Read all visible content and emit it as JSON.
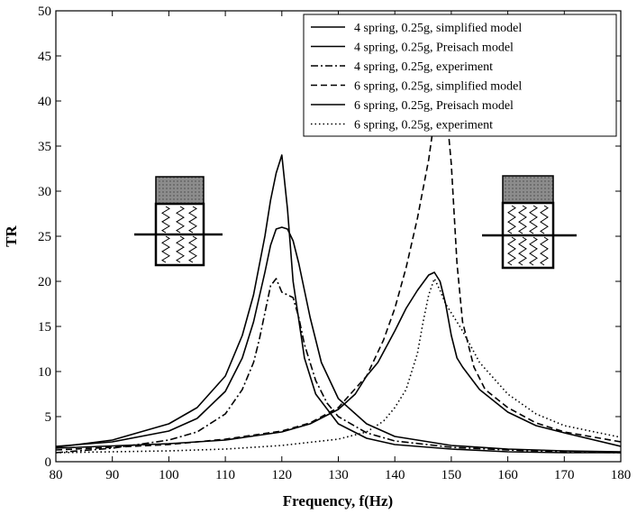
{
  "chart_data": {
    "type": "line",
    "xlabel": "Frequency, f(Hz)",
    "ylabel": "TR",
    "xlim": [
      80,
      180
    ],
    "ylim": [
      0,
      50
    ],
    "xticks": [
      80,
      90,
      100,
      110,
      120,
      130,
      140,
      150,
      160,
      170,
      180
    ],
    "yticks": [
      0,
      5,
      10,
      15,
      20,
      25,
      30,
      35,
      40,
      45,
      50
    ],
    "grid": false,
    "legend_position": "top-right",
    "series": [
      {
        "name": "4 spring, 0.25g, simplified model",
        "style": "solid",
        "x": [
          80,
          90,
          100,
          105,
          110,
          113,
          115,
          117,
          118,
          119,
          120,
          121,
          122,
          124,
          126,
          130,
          135,
          140,
          150,
          160,
          170,
          180
        ],
        "y": [
          1.6,
          2.4,
          4.2,
          6.0,
          9.5,
          14.0,
          18.5,
          25.0,
          29.0,
          32.0,
          34.0,
          28.0,
          20.0,
          11.5,
          7.5,
          4.2,
          2.6,
          1.9,
          1.4,
          1.1,
          1.0,
          1.0
        ]
      },
      {
        "name": "4 spring, 0.25g, Preisach model",
        "style": "solid",
        "x": [
          80,
          90,
          100,
          105,
          110,
          113,
          115,
          117,
          118,
          119,
          120,
          121,
          122,
          123,
          125,
          127,
          130,
          135,
          140,
          150,
          160,
          170,
          180
        ],
        "y": [
          1.7,
          2.2,
          3.4,
          4.8,
          7.8,
          11.5,
          15.5,
          21.0,
          24.0,
          25.8,
          26.0,
          25.8,
          24.5,
          22.0,
          16.0,
          11.0,
          7.0,
          4.2,
          2.8,
          1.8,
          1.4,
          1.2,
          1.1
        ]
      },
      {
        "name": "4 spring, 0.25g, experiment",
        "style": "dashdot",
        "x": [
          80,
          90,
          100,
          105,
          110,
          113,
          115,
          116,
          117,
          118,
          119,
          120,
          121,
          122,
          123,
          124,
          126,
          128,
          130,
          135,
          140,
          150,
          160,
          170,
          180
        ],
        "y": [
          1.0,
          1.5,
          2.4,
          3.3,
          5.3,
          8.0,
          11.0,
          13.5,
          16.5,
          19.5,
          20.3,
          18.8,
          18.5,
          18.2,
          16.0,
          13.0,
          9.0,
          6.5,
          5.0,
          3.2,
          2.3,
          1.6,
          1.3,
          1.1,
          1.0
        ]
      },
      {
        "name": "6 spring, 0.25g, simplified model",
        "style": "dashed",
        "x": [
          80,
          100,
          110,
          120,
          125,
          130,
          135,
          138,
          140,
          142,
          144,
          146,
          147,
          148,
          149,
          150,
          151,
          152,
          154,
          156,
          160,
          165,
          170,
          180
        ],
        "y": [
          1.3,
          1.9,
          2.5,
          3.4,
          4.3,
          6.0,
          9.5,
          13.5,
          17.0,
          21.5,
          27.0,
          33.5,
          38.0,
          41.0,
          40.0,
          33.0,
          22.0,
          15.5,
          10.5,
          8.0,
          6.0,
          4.3,
          3.3,
          2.2
        ]
      },
      {
        "name": "6 spring, 0.25g, Preisach model",
        "style": "solid",
        "x": [
          80,
          100,
          110,
          120,
          125,
          130,
          133,
          135,
          137,
          140,
          142,
          144,
          146,
          147,
          148,
          149,
          150,
          151,
          152,
          155,
          160,
          165,
          170,
          180
        ],
        "y": [
          1.5,
          2.0,
          2.4,
          3.3,
          4.2,
          5.8,
          7.5,
          9.5,
          11.0,
          14.5,
          17.0,
          19.0,
          20.7,
          21.0,
          20.0,
          17.5,
          14.0,
          11.5,
          10.5,
          8.0,
          5.5,
          4.0,
          3.2,
          1.7
        ]
      },
      {
        "name": "6 spring, 0.25g, experiment",
        "style": "dotted",
        "x": [
          80,
          100,
          110,
          120,
          130,
          135,
          138,
          140,
          142,
          144,
          145,
          146,
          147,
          148,
          149,
          150,
          151,
          152,
          155,
          160,
          165,
          170,
          180
        ],
        "y": [
          1.0,
          1.2,
          1.4,
          1.8,
          2.5,
          3.3,
          4.5,
          6.0,
          8.0,
          12.0,
          15.5,
          18.5,
          20.3,
          19.0,
          17.5,
          16.5,
          15.5,
          14.5,
          11.0,
          7.5,
          5.3,
          4.0,
          2.7
        ]
      }
    ]
  }
}
